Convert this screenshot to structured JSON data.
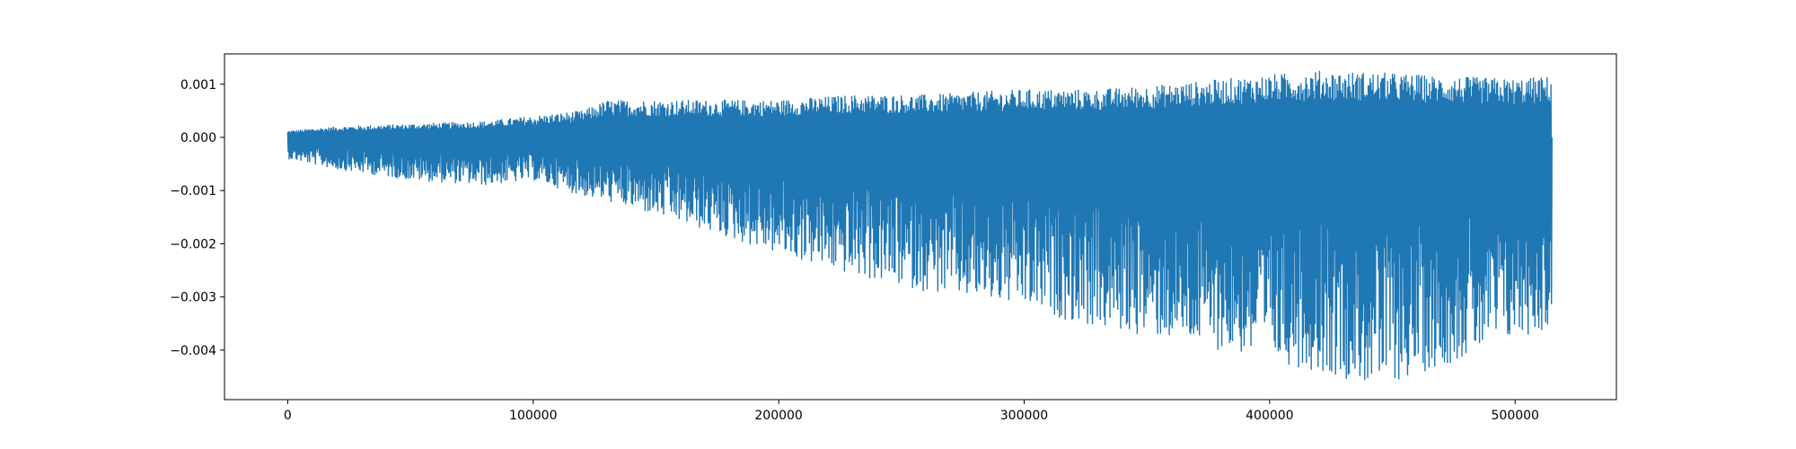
{
  "chart_data": {
    "type": "line",
    "title": "",
    "xlabel": "",
    "ylabel": "",
    "xlim": [
      -25750,
      541250
    ],
    "ylim": [
      -0.00493,
      0.00157
    ],
    "grid": false,
    "legend": "none",
    "x_ticks": [
      {
        "value": 0,
        "label": "0"
      },
      {
        "value": 100000,
        "label": "100000"
      },
      {
        "value": 200000,
        "label": "200000"
      },
      {
        "value": 300000,
        "label": "300000"
      },
      {
        "value": 400000,
        "label": "400000"
      },
      {
        "value": 500000,
        "label": "500000"
      }
    ],
    "y_ticks": [
      {
        "value": 0.001,
        "label": "0.001"
      },
      {
        "value": 0.0,
        "label": "0.000"
      },
      {
        "value": -0.001,
        "label": "−0.001"
      },
      {
        "value": -0.002,
        "label": "−0.002"
      },
      {
        "value": -0.003,
        "label": "−0.003"
      },
      {
        "value": -0.004,
        "label": "−0.004"
      }
    ],
    "series": [
      {
        "color": "#1f77b4",
        "x_start": 0,
        "x_end": 515000,
        "envelope_x": [
          0,
          20000,
          50000,
          80000,
          100000,
          120000,
          130000,
          160000,
          200000,
          230000,
          260000,
          300000,
          330000,
          360000,
          400000,
          420000,
          445000,
          470000,
          500000,
          515000
        ],
        "envelope_max": [
          0.00012,
          0.0002,
          0.00025,
          0.0003,
          0.0004,
          0.0005,
          0.0007,
          0.0007,
          0.0007,
          0.0008,
          0.0008,
          0.0009,
          0.0009,
          0.001,
          0.00118,
          0.00125,
          0.00122,
          0.00115,
          0.0011,
          0.00115
        ],
        "envelope_min": [
          -0.0004,
          -0.0006,
          -0.0008,
          -0.0009,
          -0.0008,
          -0.0011,
          -0.0012,
          -0.0016,
          -0.0022,
          -0.0026,
          -0.0029,
          -0.0032,
          -0.0036,
          -0.0038,
          -0.0042,
          -0.0044,
          -0.0047,
          -0.0043,
          -0.0038,
          -0.0036
        ]
      }
    ]
  }
}
